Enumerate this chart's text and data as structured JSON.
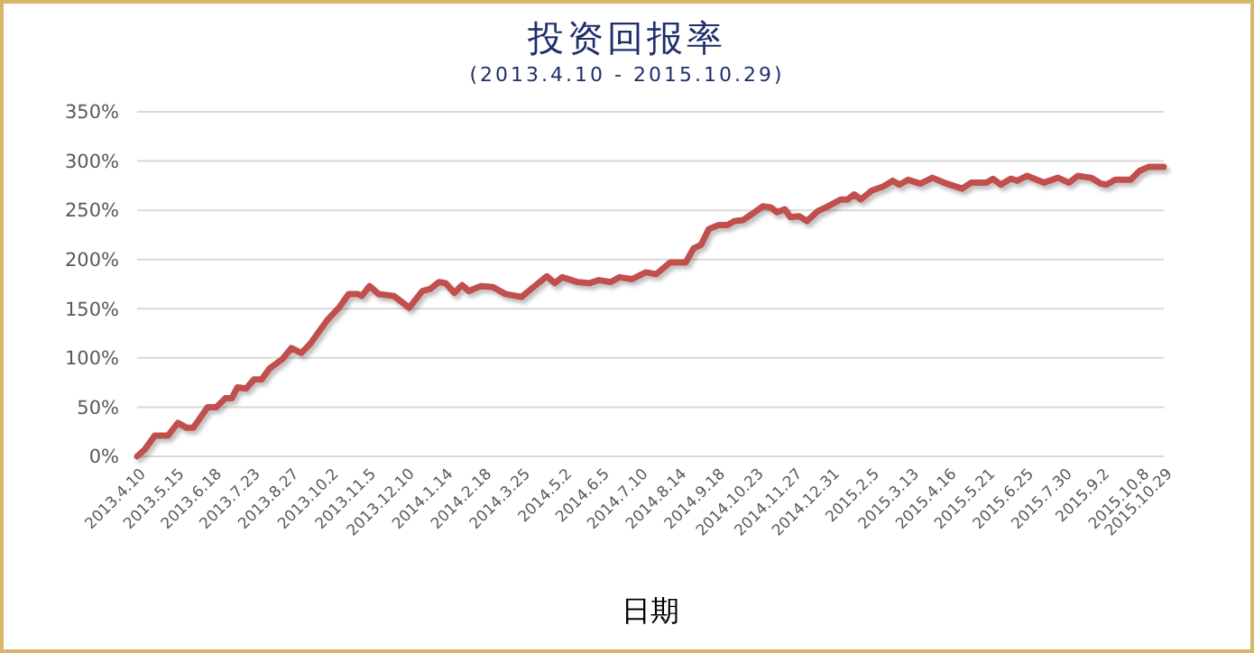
{
  "chart_data": {
    "type": "line",
    "title": "投资回报率",
    "subtitle": "(2013.4.10 - 2015.10.29)",
    "xlabel": "日期",
    "x": [
      "2013-04-10",
      "2013-04-17",
      "2013-04-26",
      "2013-05-08",
      "2013-05-17",
      "2013-05-25",
      "2013-05-31",
      "2013-06-13",
      "2013-06-21",
      "2013-06-29",
      "2013-07-05",
      "2013-07-10",
      "2013-07-18",
      "2013-07-25",
      "2013-08-01",
      "2013-08-08",
      "2013-08-20",
      "2013-08-28",
      "2013-09-06",
      "2013-09-14",
      "2013-09-30",
      "2013-10-11",
      "2013-10-19",
      "2013-10-27",
      "2013-10-31",
      "2013-11-07",
      "2013-11-15",
      "2013-11-29",
      "2013-12-13",
      "2013-12-25",
      "2014-01-01",
      "2014-01-09",
      "2014-01-15",
      "2014-01-23",
      "2014-01-30",
      "2014-02-05",
      "2014-02-16",
      "2014-02-27",
      "2014-03-10",
      "2014-03-25",
      "2014-04-07",
      "2014-04-17",
      "2014-04-24",
      "2014-05-01",
      "2014-05-15",
      "2014-05-26",
      "2014-06-03",
      "2014-06-14",
      "2014-06-22",
      "2014-07-03",
      "2014-07-16",
      "2014-07-25",
      "2014-08-07",
      "2014-08-21",
      "2014-08-28",
      "2014-09-04",
      "2014-09-11",
      "2014-09-20",
      "2014-09-28",
      "2014-10-04",
      "2014-10-12",
      "2014-10-20",
      "2014-10-30",
      "2014-11-06",
      "2014-11-12",
      "2014-11-19",
      "2014-11-24",
      "2014-12-02",
      "2014-12-09",
      "2014-12-19",
      "2014-12-28",
      "2015-01-09",
      "2015-01-15",
      "2015-01-21",
      "2015-01-27",
      "2015-02-06",
      "2015-02-16",
      "2015-02-25",
      "2015-03-03",
      "2015-03-11",
      "2015-03-22",
      "2015-04-02",
      "2015-04-15",
      "2015-04-29",
      "2015-05-07",
      "2015-05-21",
      "2015-05-27",
      "2015-06-03",
      "2015-06-12",
      "2015-06-18",
      "2015-06-27",
      "2015-07-12",
      "2015-07-25",
      "2015-08-04",
      "2015-08-12",
      "2015-08-24",
      "2015-09-02",
      "2015-09-07",
      "2015-09-15",
      "2015-09-29",
      "2015-10-07",
      "2015-10-15",
      "2015-10-29"
    ],
    "series": [
      {
        "color": "#c0504d",
        "values": [
          0,
          7,
          21,
          21,
          34,
          29,
          29,
          50,
          50,
          59,
          59,
          70,
          69,
          78,
          78,
          89,
          99,
          110,
          105,
          114,
          139,
          152,
          165,
          165,
          163,
          173,
          165,
          163,
          151,
          168,
          170,
          177,
          176,
          166,
          174,
          168,
          173,
          172,
          165,
          162,
          174,
          183,
          176,
          182,
          177,
          176,
          179,
          177,
          182,
          180,
          187,
          185,
          197,
          197,
          211,
          215,
          231,
          235,
          235,
          239,
          240,
          246,
          254,
          253,
          248,
          251,
          243,
          244,
          239,
          249,
          254,
          261,
          261,
          266,
          261,
          270,
          274,
          280,
          276,
          281,
          277,
          283,
          277,
          272,
          278,
          278,
          282,
          276,
          282,
          280,
          285,
          278,
          283,
          278,
          285,
          283,
          277,
          276,
          281,
          281,
          290,
          294,
          294
        ]
      }
    ],
    "xlim": [
      "2013-04-10",
      "2015-10-29"
    ],
    "xticks": [
      {
        "value": "2013-04-10",
        "label": "2013.4.10"
      },
      {
        "value": "2013-05-15",
        "label": "2013.5.15"
      },
      {
        "value": "2013-06-18",
        "label": "2013.6.18"
      },
      {
        "value": "2013-07-23",
        "label": "2013.7.23"
      },
      {
        "value": "2013-08-27",
        "label": "2013.8.27"
      },
      {
        "value": "2013-10-02",
        "label": "2013.10.2"
      },
      {
        "value": "2013-11-05",
        "label": "2013.11.5"
      },
      {
        "value": "2013-12-10",
        "label": "2013.12.10"
      },
      {
        "value": "2014-01-14",
        "label": "2014.1.14"
      },
      {
        "value": "2014-02-18",
        "label": "2014.2.18"
      },
      {
        "value": "2014-03-25",
        "label": "2014.3.25"
      },
      {
        "value": "2014-05-02",
        "label": "2014.5.2"
      },
      {
        "value": "2014-06-05",
        "label": "2014.6.5"
      },
      {
        "value": "2014-07-10",
        "label": "2014.7.10"
      },
      {
        "value": "2014-08-14",
        "label": "2014.8.14"
      },
      {
        "value": "2014-09-18",
        "label": "2014.9.18"
      },
      {
        "value": "2014-10-23",
        "label": "2014.10.23"
      },
      {
        "value": "2014-11-27",
        "label": "2014.11.27"
      },
      {
        "value": "2014-12-31",
        "label": "2014.12.31"
      },
      {
        "value": "2015-02-05",
        "label": "2015.2.5"
      },
      {
        "value": "2015-03-13",
        "label": "2015.3.13"
      },
      {
        "value": "2015-04-16",
        "label": "2015.4.16"
      },
      {
        "value": "2015-05-21",
        "label": "2015.5.21"
      },
      {
        "value": "2015-06-25",
        "label": "2015.6.25"
      },
      {
        "value": "2015-07-30",
        "label": "2015.7.30"
      },
      {
        "value": "2015-09-02",
        "label": "2015.9.2"
      },
      {
        "value": "2015-10-08",
        "label": "2015.10.8"
      },
      {
        "value": "2015-10-29",
        "label": "2015.10.29"
      }
    ],
    "ylim": [
      0,
      350
    ],
    "yticks": [
      {
        "value": 0,
        "label": "0%"
      },
      {
        "value": 50,
        "label": "50%"
      },
      {
        "value": 100,
        "label": "100%"
      },
      {
        "value": 150,
        "label": "150%"
      },
      {
        "value": 200,
        "label": "200%"
      },
      {
        "value": 250,
        "label": "250%"
      },
      {
        "value": 300,
        "label": "300%"
      },
      {
        "value": 350,
        "label": "350%"
      }
    ],
    "grid": "y",
    "marker": "none",
    "line_style": "solid"
  }
}
